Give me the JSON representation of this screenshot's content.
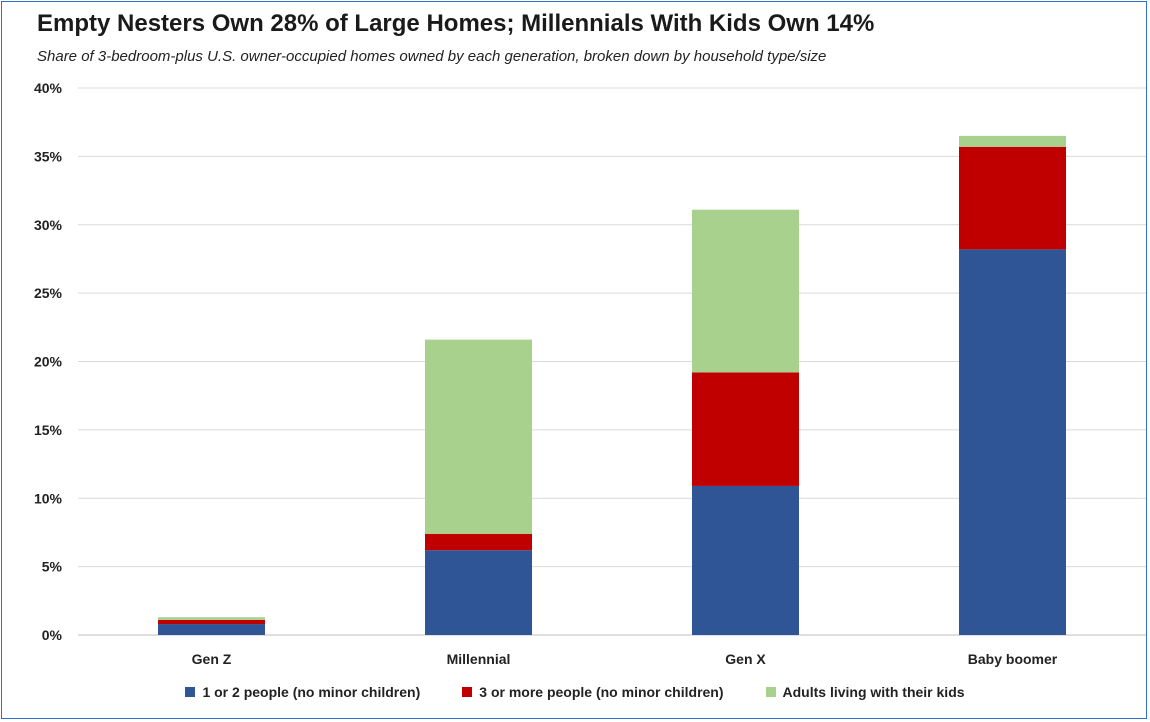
{
  "chart_data": {
    "type": "bar",
    "stacked": true,
    "title": "Empty Nesters Own 28% of Large Homes; Millennials With Kids Own 14%",
    "subtitle": "Share of 3-bedroom-plus U.S. owner-occupied homes owned by each generation, broken down by household type/size",
    "categories": [
      "Gen Z",
      "Millennial",
      "Gen X",
      "Baby boomer"
    ],
    "series": [
      {
        "name": "1 or 2 people (no minor children)",
        "color": "#2f5597",
        "values": [
          0.8,
          6.2,
          10.9,
          28.2
        ]
      },
      {
        "name": "3 or more people (no minor children)",
        "color": "#c00000",
        "values": [
          0.3,
          1.2,
          8.3,
          7.5
        ]
      },
      {
        "name": "Adults living with their kids",
        "color": "#a9d18e",
        "values": [
          0.2,
          14.2,
          11.9,
          0.8
        ]
      }
    ],
    "ylim": [
      0,
      40
    ],
    "yticks": [
      "0%",
      "5%",
      "10%",
      "15%",
      "20%",
      "25%",
      "30%",
      "35%",
      "40%"
    ],
    "grid": true,
    "legend_position": "bottom"
  }
}
